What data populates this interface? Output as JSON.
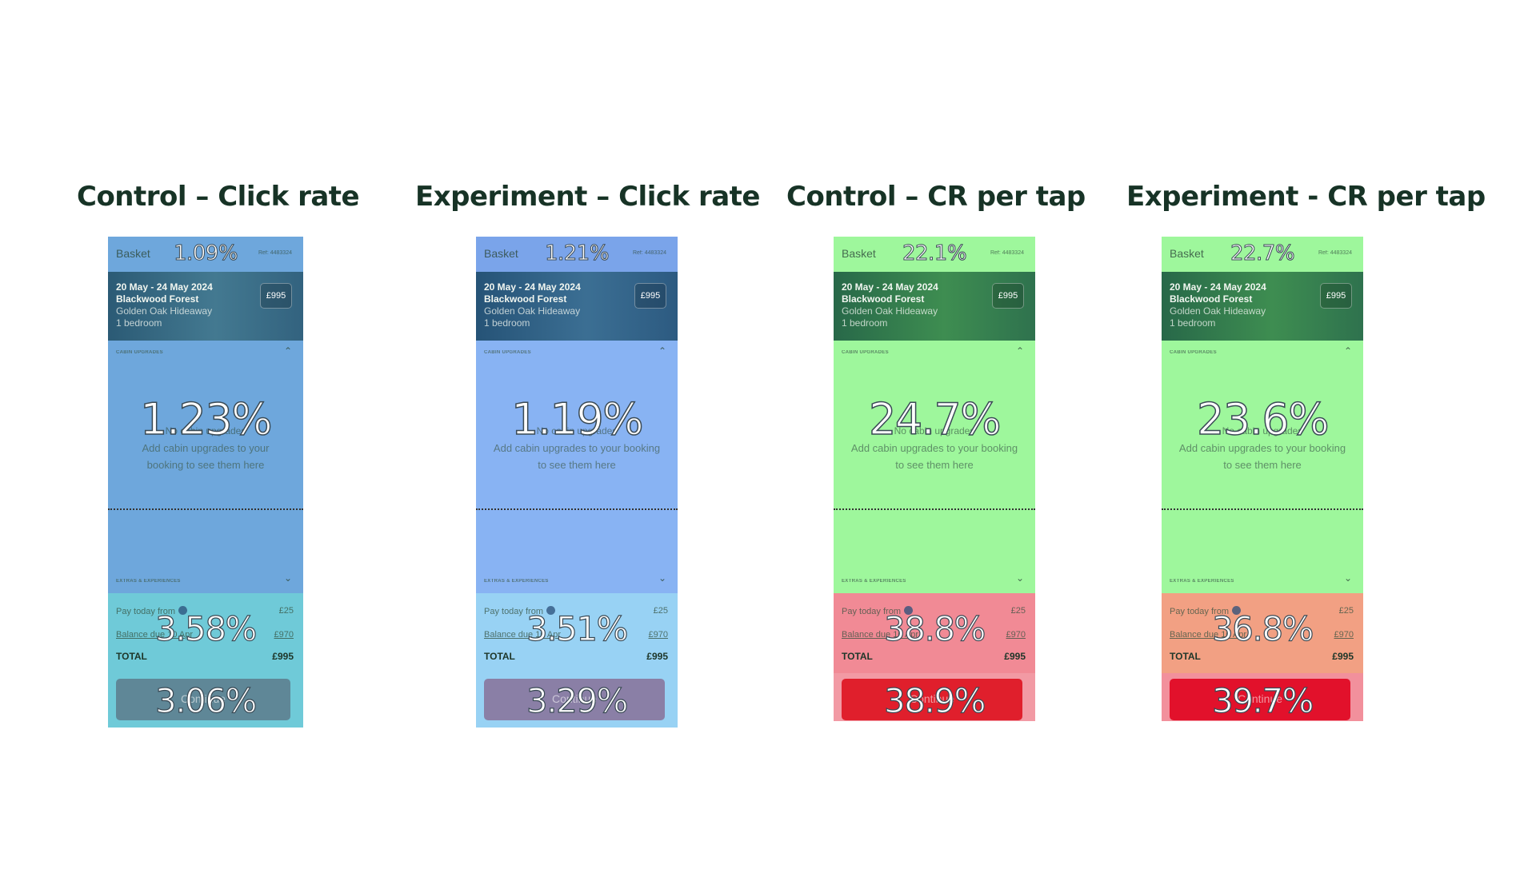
{
  "common": {
    "basket_label": "Basket",
    "ref_label": "Ref: 4483324",
    "banner_dates": "20 May - 24 May 2024",
    "banner_location": "Blackwood Forest",
    "banner_cabin": "Golden Oak Hideaway",
    "banner_bedrooms": "1 bedroom",
    "banner_price": "£995",
    "upgrades_label": "CABIN UPGRADES",
    "empty_title": "No cabin upgrades",
    "empty_text": "Add cabin upgrades to your booking to see them here",
    "extras_label": "EXTRAS & EXPERIENCES",
    "pay_today_label": "Pay today from",
    "pay_today_value": "£25",
    "balance_label": "Balance due 10 Apr",
    "balance_value": "£970",
    "total_label": "TOTAL",
    "total_value": "£995",
    "cta_label": "Continue"
  },
  "panels": [
    {
      "heading": "Control – Click rate",
      "theme": "blue1",
      "pct_basket": "1.09%",
      "pct_upgrades": "1.23%",
      "pct_payment": "3.58%",
      "pct_cta": "3.06%",
      "colors": {
        "body": "#6ea7dc",
        "payment": "#6fcad8",
        "cta": "#5f8797"
      }
    },
    {
      "heading": "Experiment – Click rate",
      "theme": "blue2",
      "pct_basket": "1.21%",
      "pct_upgrades": "1.19%",
      "pct_payment": "3.51%",
      "pct_cta": "3.29%",
      "colors": {
        "body": "#88b3f3",
        "payment": "#98d2f4",
        "cta": "#8a7fa6"
      }
    },
    {
      "heading": "Control – CR per tap",
      "theme": "green1",
      "pct_basket": "22.1%",
      "pct_upgrades": "24.7%",
      "pct_payment": "38.8%",
      "pct_cta": "38.9%",
      "colors": {
        "body": "#9ef79c",
        "payment": "#f18a95",
        "cta": "#e01f2c"
      }
    },
    {
      "heading": "Experiment - CR per tap",
      "theme": "green2",
      "pct_basket": "22.7%",
      "pct_upgrades": "23.6%",
      "pct_payment": "36.8%",
      "pct_cta": "39.7%",
      "colors": {
        "body": "#9ef79c",
        "payment": "#f2a083",
        "cta": "#e2112b"
      }
    }
  ]
}
